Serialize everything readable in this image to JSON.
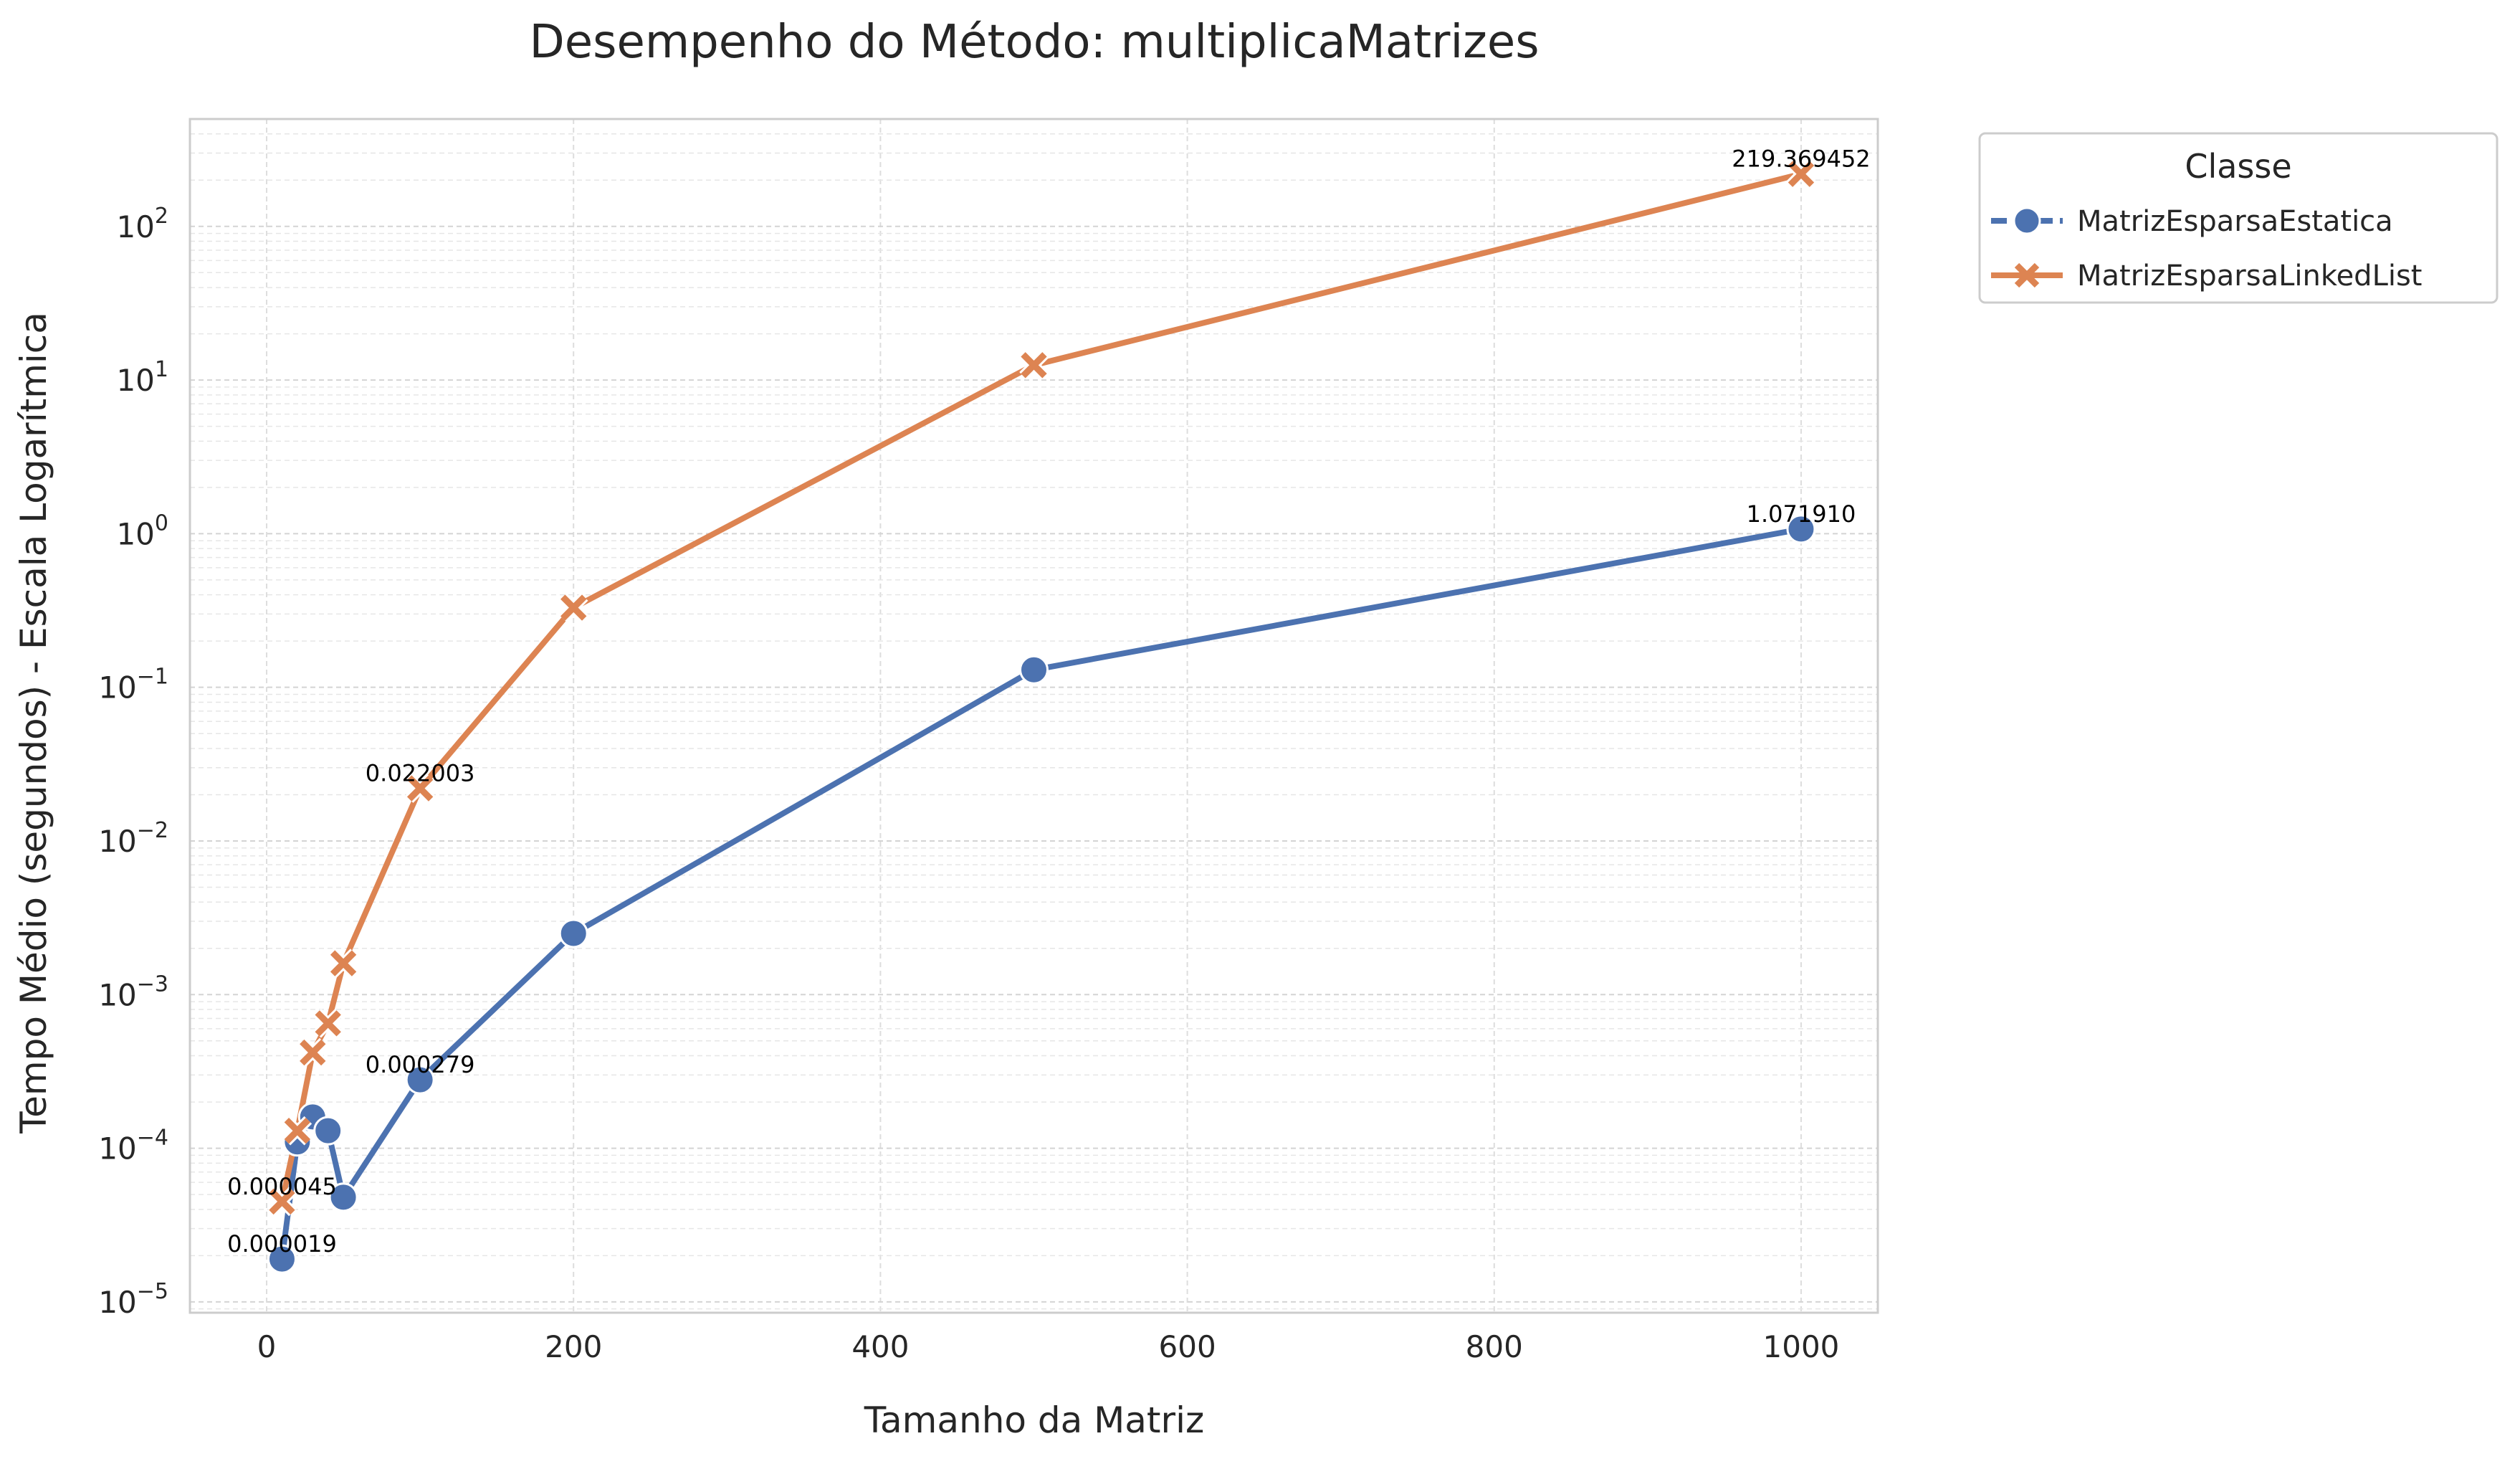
{
  "chart_data": {
    "type": "line",
    "title": "Desempenho do Método: multiplicaMatrizes",
    "xlabel": "Tamanho da Matriz",
    "ylabel": "Tempo Médio (segundos) - Escala Logarítmica",
    "yscale": "log",
    "xlim": [
      -50,
      1050
    ],
    "ylim": [
      8.5e-06,
      500
    ],
    "xticks": [
      0,
      200,
      400,
      600,
      800,
      1000
    ],
    "yticks": [
      {
        "value": 1e-05,
        "base": "10",
        "exp": "−5"
      },
      {
        "value": 0.0001,
        "base": "10",
        "exp": "−4"
      },
      {
        "value": 0.001,
        "base": "10",
        "exp": "−3"
      },
      {
        "value": 0.01,
        "base": "10",
        "exp": "−2"
      },
      {
        "value": 0.1,
        "base": "10",
        "exp": "−1"
      },
      {
        "value": 1,
        "base": "10",
        "exp": "0"
      },
      {
        "value": 10,
        "base": "10",
        "exp": "1"
      },
      {
        "value": 100,
        "base": "10",
        "exp": "2"
      }
    ],
    "grid": true,
    "legend": {
      "title": "Classe",
      "position": "outside-top-right"
    },
    "series": [
      {
        "name": "MatrizEsparsaEstatica",
        "color": "#4c72b0",
        "marker": "circle",
        "x": [
          10,
          20,
          30,
          40,
          50,
          100,
          200,
          500,
          1000
        ],
        "y": [
          1.9e-05,
          0.00011,
          0.00016,
          0.00013,
          4.8e-05,
          0.000279,
          0.0025,
          0.13,
          1.07191
        ]
      },
      {
        "name": "MatrizEsparsaLinkedList",
        "color": "#dd8452",
        "marker": "x",
        "x": [
          10,
          20,
          30,
          40,
          50,
          100,
          200,
          500,
          1000
        ],
        "y": [
          4.5e-05,
          0.00013,
          0.00042,
          0.00065,
          0.0016,
          0.022003,
          0.33,
          12.5,
          219.369452
        ]
      }
    ],
    "annotations": [
      {
        "text": "0.000019",
        "x": 10,
        "y": 1.9e-05
      },
      {
        "text": "0.000045",
        "x": 10,
        "y": 4.5e-05
      },
      {
        "text": "0.000279",
        "x": 100,
        "y": 0.000279
      },
      {
        "text": "0.022003",
        "x": 100,
        "y": 0.022003
      },
      {
        "text": "1.071910",
        "x": 1000,
        "y": 1.07191
      },
      {
        "text": "219.369452",
        "x": 1000,
        "y": 219.369452
      }
    ]
  }
}
